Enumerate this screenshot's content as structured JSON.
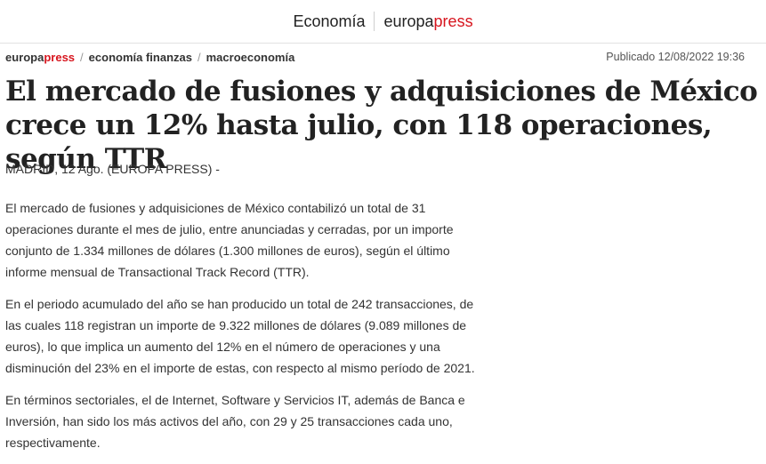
{
  "header": {
    "section": "Economía",
    "logo_part1": "europa",
    "logo_part2": "press"
  },
  "breadcrumb": {
    "home_part1": "europa",
    "home_part2": "press",
    "items": [
      "economía finanzas",
      "macroeconomía"
    ]
  },
  "published": "Publicado 12/08/2022 19:36",
  "article": {
    "title": "El mercado de fusiones y adquisiciones de México crece un 12% hasta julio, con 118 operaciones, según TTR",
    "dateline": "MADRID, 12 Ago. (EUROPA PRESS) -",
    "paragraphs": [
      "El mercado de fusiones y adquisiciones de México contabilizó un total de 31 operaciones durante el mes de julio, entre anunciadas y cerradas, por un importe conjunto de 1.334 millones de dólares (1.300 millones de euros), según el último informe mensual de Transactional Track Record (TTR).",
      "En el periodo acumulado del año se han producido un total de 242 transacciones, de las cuales 118 registran un importe de 9.322 millones de dólares (9.089 millones de euros), lo que implica un aumento del 12% en el número de operaciones y una disminución del 23% en el importe de estas, con respecto al mismo período de 2021.",
      "En términos sectoriales, el de Internet, Software y Servicios IT, además de Banca e Inversión, han sido los más activos del año, con 29 y 25 transacciones cada uno, respectivamente."
    ]
  },
  "colors": {
    "brand_red": "#d7151e"
  }
}
